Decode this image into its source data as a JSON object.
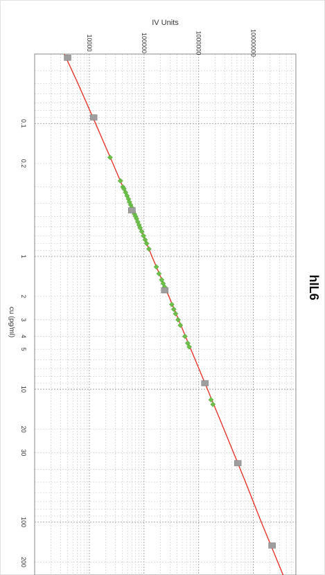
{
  "chart_data": {
    "type": "scatter",
    "title": "hIL6",
    "xlabel": "cu (pg/ml)",
    "ylabel": "IV Units",
    "xscale": "log",
    "yscale": "log",
    "xlim": [
      0.03,
      250
    ],
    "ylim": [
      1000,
      60000000
    ],
    "x_ticks": [
      0.1,
      0.2,
      1,
      2,
      3,
      4,
      5,
      10,
      20,
      30,
      100,
      200
    ],
    "x_tick_labels": [
      "0.1",
      "0.2",
      "1",
      "2",
      "3",
      "4",
      "5",
      "10",
      "20",
      "30",
      "100",
      "200"
    ],
    "y_ticks": [
      10000,
      100000,
      1000000,
      10000000
    ],
    "y_tick_labels": [
      "10000",
      "100000",
      "1000000",
      "10000000"
    ],
    "grid": true,
    "orientation": "rotated-90",
    "colors": {
      "fit": "#e8332a",
      "standards": "#9e9e9e",
      "samples": "#6cc04a",
      "grid": "#c7c7c7"
    },
    "fit_curve": {
      "name": "fit",
      "x": [
        0.03,
        0.05,
        0.1,
        0.2,
        0.5,
        1,
        2,
        5,
        10,
        20,
        50,
        100,
        200,
        250
      ],
      "y": [
        3500,
        6200,
        13000,
        27000,
        70000,
        140000,
        285000,
        720000,
        1450000,
        2900000,
        7200000,
        14000000,
        28000000,
        35000000
      ]
    },
    "series": [
      {
        "name": "standards",
        "x": [
          0.032,
          0.09,
          0.45,
          1.8,
          9,
          36,
          150
        ],
        "y": [
          4000,
          12000,
          60000,
          240000,
          1300000,
          5200000,
          22000000
        ]
      },
      {
        "name": "samples",
        "x": [
          0.18,
          0.27,
          0.3,
          0.31,
          0.33,
          0.35,
          0.37,
          0.39,
          0.41,
          0.43,
          0.46,
          0.48,
          0.5,
          0.52,
          0.55,
          0.58,
          0.61,
          0.65,
          0.7,
          0.75,
          0.8,
          0.88,
          1.2,
          1.35,
          1.5,
          1.6,
          1.7,
          2.3,
          2.5,
          2.7,
          3.0,
          3.3,
          4.0,
          4.5,
          4.8,
          12,
          13
        ],
        "y": [
          24000,
          37000,
          41000,
          43000,
          46000,
          49000,
          52000,
          54000,
          57000,
          60000,
          64000,
          67000,
          70000,
          73000,
          77000,
          81000,
          85000,
          91000,
          98000,
          105000,
          112000,
          123000,
          168000,
          188000,
          210000,
          224000,
          238000,
          322000,
          350000,
          378000,
          420000,
          462000,
          560000,
          630000,
          672000,
          1680000,
          1820000
        ]
      }
    ]
  }
}
